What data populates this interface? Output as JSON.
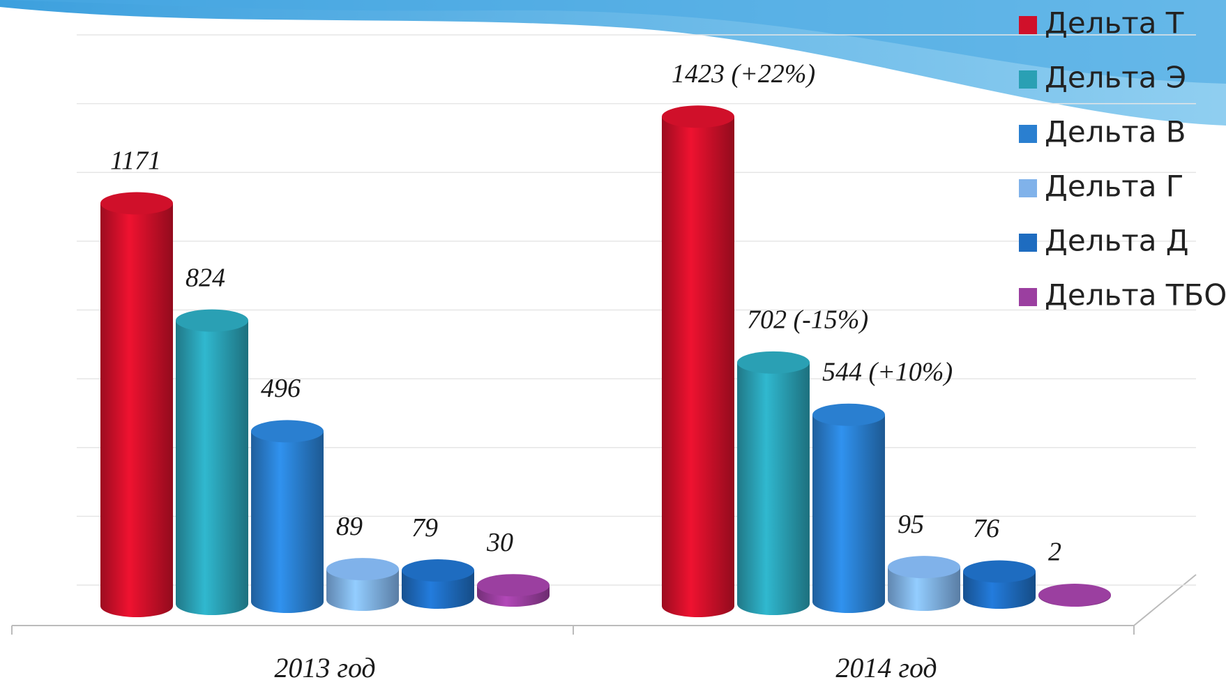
{
  "chart_data": {
    "type": "bar",
    "categories": [
      "2013 год",
      "2014 год"
    ],
    "series": [
      {
        "name": "Дельта Т",
        "color": "#d0102a",
        "values": [
          1171,
          1423
        ],
        "value_labels": [
          "1171",
          "1423 (+22%)"
        ]
      },
      {
        "name": "Дельта Э",
        "color": "#2aa0b4",
        "values": [
          824,
          702
        ],
        "value_labels": [
          "824",
          "702 (-15%)"
        ]
      },
      {
        "name": "Дельта В",
        "color": "#2a7fd0",
        "values": [
          496,
          544
        ],
        "value_labels": [
          "496",
          "544 (+10%)"
        ]
      },
      {
        "name": "Дельта Г",
        "color": "#80b2ea",
        "values": [
          89,
          95
        ]
      },
      {
        "name": "Дельта Д",
        "color": "#1e6cc0",
        "values": [
          79,
          76
        ]
      },
      {
        "name": "Дельта ТБО",
        "color": "#9b3fa0",
        "values": [
          30,
          2
        ]
      }
    ],
    "ylim": [
      0,
      1600
    ],
    "yticks": [
      0,
      200,
      400,
      600,
      800,
      1000,
      1200,
      1400,
      1600
    ],
    "grid": true
  }
}
